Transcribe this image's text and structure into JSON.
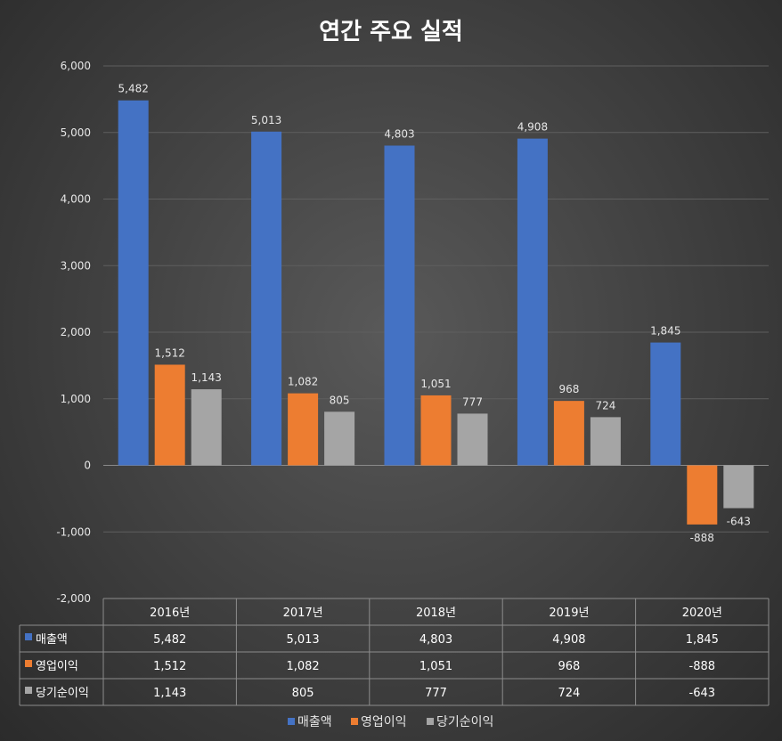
{
  "chart_data": {
    "type": "bar",
    "title": "연간 주요 실적",
    "categories": [
      "2016년",
      "2017년",
      "2018년",
      "2019년",
      "2020년"
    ],
    "series": [
      {
        "name": "매출액",
        "values": [
          5482,
          5013,
          4803,
          4908,
          1845
        ],
        "color": "#4472C4"
      },
      {
        "name": "영업이익",
        "values": [
          1512,
          1082,
          1051,
          968,
          -888
        ],
        "color": "#ED7D31"
      },
      {
        "name": "당기순이익",
        "values": [
          1143,
          805,
          777,
          724,
          -643
        ],
        "color": "#A5A5A5"
      }
    ],
    "value_labels": [
      [
        "5,482",
        "5,013",
        "4,803",
        "4,908",
        "1,845"
      ],
      [
        "1,512",
        "1,082",
        "1,051",
        "968",
        "-888"
      ],
      [
        "1,143",
        "805",
        "777",
        "724",
        "-643"
      ]
    ],
    "ylim": [
      -2000,
      6000
    ],
    "yticks": [
      6000,
      5000,
      4000,
      3000,
      2000,
      1000,
      0,
      -1000,
      -2000
    ],
    "ytick_labels": [
      "6,000",
      "5,000",
      "4,000",
      "3,000",
      "2,000",
      "1,000",
      "0",
      "-1,000",
      "-2,000"
    ],
    "xlabel": "",
    "ylabel": "",
    "grid": true,
    "legend_position": "bottom",
    "data_table": true
  }
}
